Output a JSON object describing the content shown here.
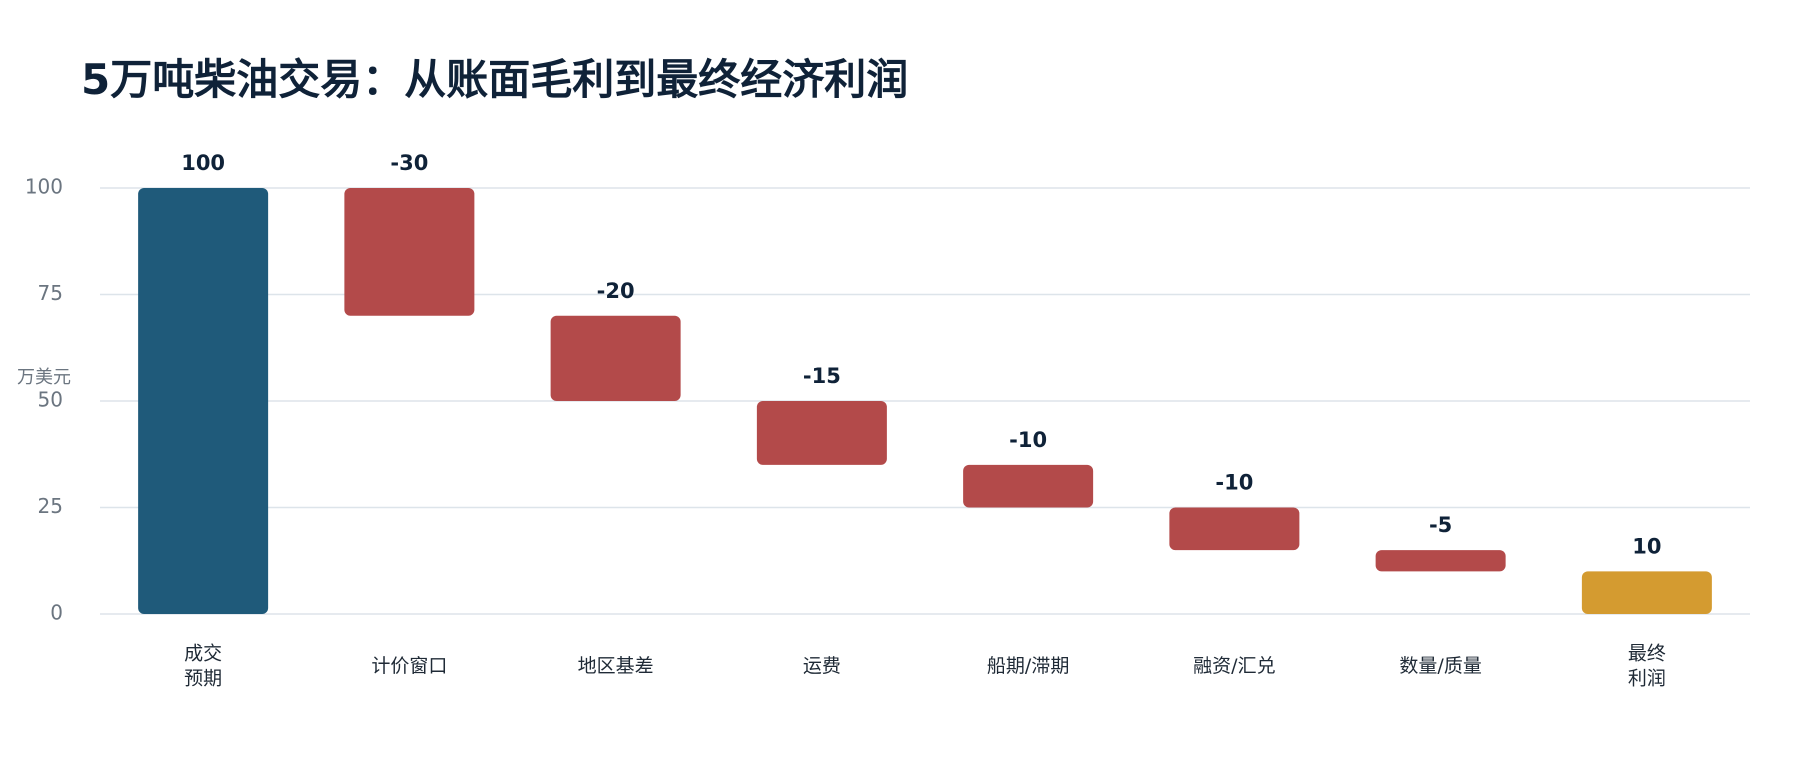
{
  "chart_data": {
    "type": "waterfall",
    "title": "5万吨柴油交易：从账面毛利到最终经济利润",
    "y_label": "万美元",
    "categories": [
      "成交\n预期",
      "计价窗口",
      "地区基差",
      "运费",
      "船期/滞期",
      "融资/汇兑",
      "数量/质量",
      "最终\n利润"
    ],
    "values": [
      100,
      -30,
      -20,
      -15,
      -10,
      -10,
      -5,
      10
    ],
    "measure": [
      "total",
      "relative",
      "relative",
      "relative",
      "relative",
      "relative",
      "relative",
      "total"
    ],
    "colors": [
      "#1f5a7a",
      "#b34a4a",
      "#b34a4a",
      "#b34a4a",
      "#b34a4a",
      "#b34a4a",
      "#b34a4a",
      "#d49b30"
    ],
    "ylim": [
      0,
      100
    ],
    "yticks": [
      0,
      25,
      50,
      75,
      100
    ],
    "grid": true
  }
}
